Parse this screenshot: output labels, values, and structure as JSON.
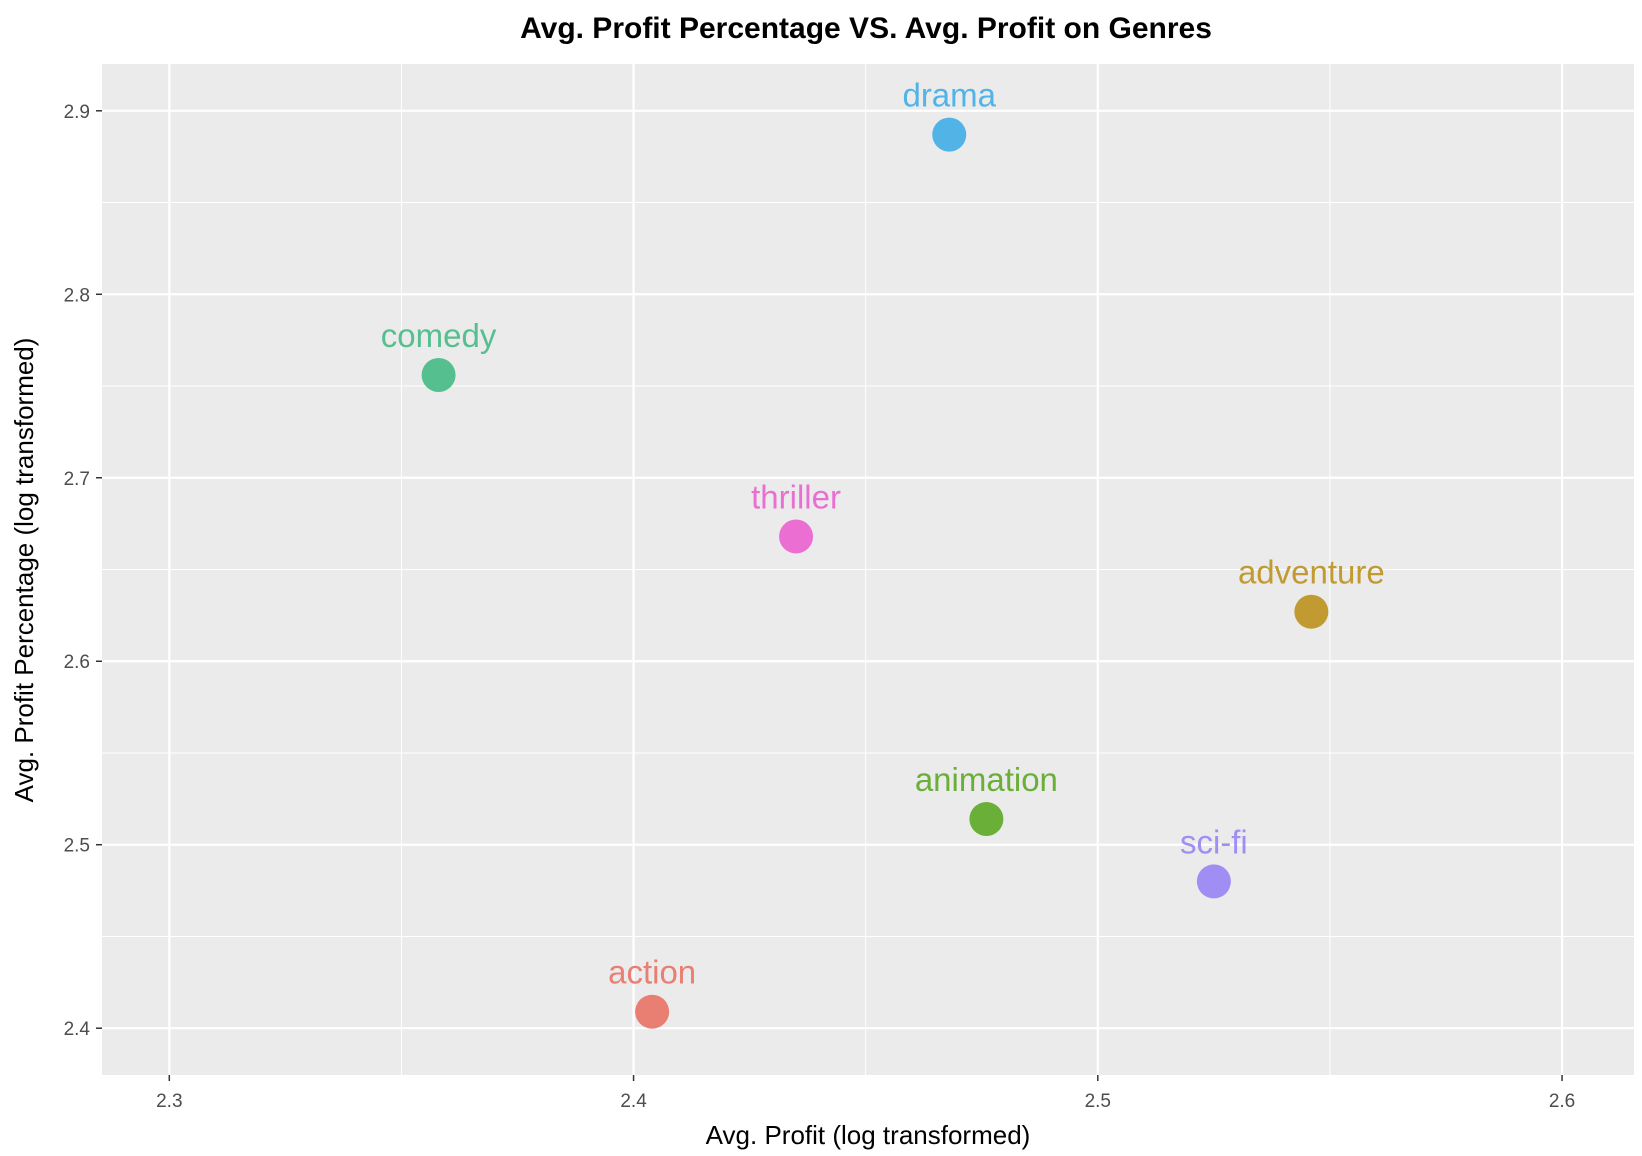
{
  "chart_data": {
    "type": "scatter",
    "title": "Avg. Profit Percentage VS. Avg. Profit on Genres",
    "xlabel": "Avg. Profit (log transformed)",
    "ylabel": "Avg. Profit Percentage (log transformed)",
    "xlim": [
      2.2855,
      2.6155
    ],
    "ylim": [
      2.3745,
      2.9255
    ],
    "x_ticks": [
      "2.3",
      "2.4",
      "2.5",
      "2.6"
    ],
    "y_ticks": [
      "2.4",
      "2.5",
      "2.6",
      "2.7",
      "2.8",
      "2.9"
    ],
    "grid": true,
    "legend": "none",
    "points": [
      {
        "label": "drama",
        "x": 2.468,
        "y": 2.887,
        "color": "#52b3e6"
      },
      {
        "label": "comedy",
        "x": 2.358,
        "y": 2.756,
        "color": "#56bf90"
      },
      {
        "label": "thriller",
        "x": 2.435,
        "y": 2.668,
        "color": "#eb6ed2"
      },
      {
        "label": "adventure",
        "x": 2.546,
        "y": 2.627,
        "color": "#c19a31"
      },
      {
        "label": "animation",
        "x": 2.476,
        "y": 2.514,
        "color": "#6aaf37"
      },
      {
        "label": "sci-fi",
        "x": 2.525,
        "y": 2.48,
        "color": "#a08ef5"
      },
      {
        "label": "action",
        "x": 2.404,
        "y": 2.409,
        "color": "#e97f73"
      }
    ]
  }
}
